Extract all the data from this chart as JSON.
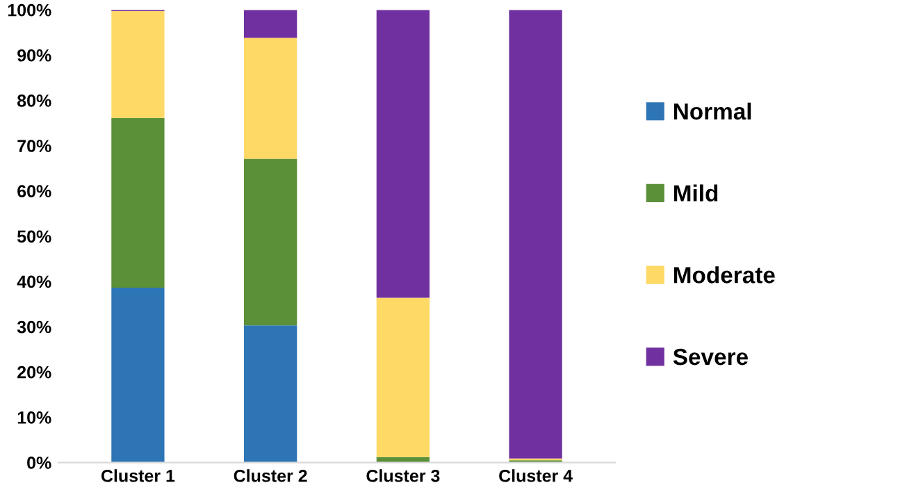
{
  "chart_data": {
    "type": "bar",
    "stacked": true,
    "categories": [
      "Cluster 1",
      "Cluster 2",
      "Cluster 3",
      "Cluster 4"
    ],
    "series": [
      {
        "name": "Normal",
        "color": "#2e75b6",
        "values": [
          38.6,
          30.3,
          0,
          0
        ]
      },
      {
        "name": "Mild",
        "color": "#5b8f38",
        "values": [
          37.5,
          36.8,
          1.2,
          0.5
        ]
      },
      {
        "name": "Moderate",
        "color": "#ffd966",
        "values": [
          23.6,
          26.7,
          35.2,
          0.4
        ]
      },
      {
        "name": "Severe",
        "color": "#7030a0",
        "values": [
          0.3,
          6.2,
          63.6,
          99.1
        ]
      }
    ],
    "ylim": [
      0,
      100
    ],
    "yticks": [
      {
        "value": 0,
        "label": "0%"
      },
      {
        "value": 10,
        "label": "10%"
      },
      {
        "value": 20,
        "label": "20%"
      },
      {
        "value": 30,
        "label": "30%"
      },
      {
        "value": 40,
        "label": "40%"
      },
      {
        "value": 50,
        "label": "50%"
      },
      {
        "value": 60,
        "label": "60%"
      },
      {
        "value": 70,
        "label": "70%"
      },
      {
        "value": 80,
        "label": "80%"
      },
      {
        "value": 90,
        "label": "90%"
      },
      {
        "value": 100,
        "label": "100%"
      }
    ],
    "grid": false,
    "legend": "right"
  }
}
